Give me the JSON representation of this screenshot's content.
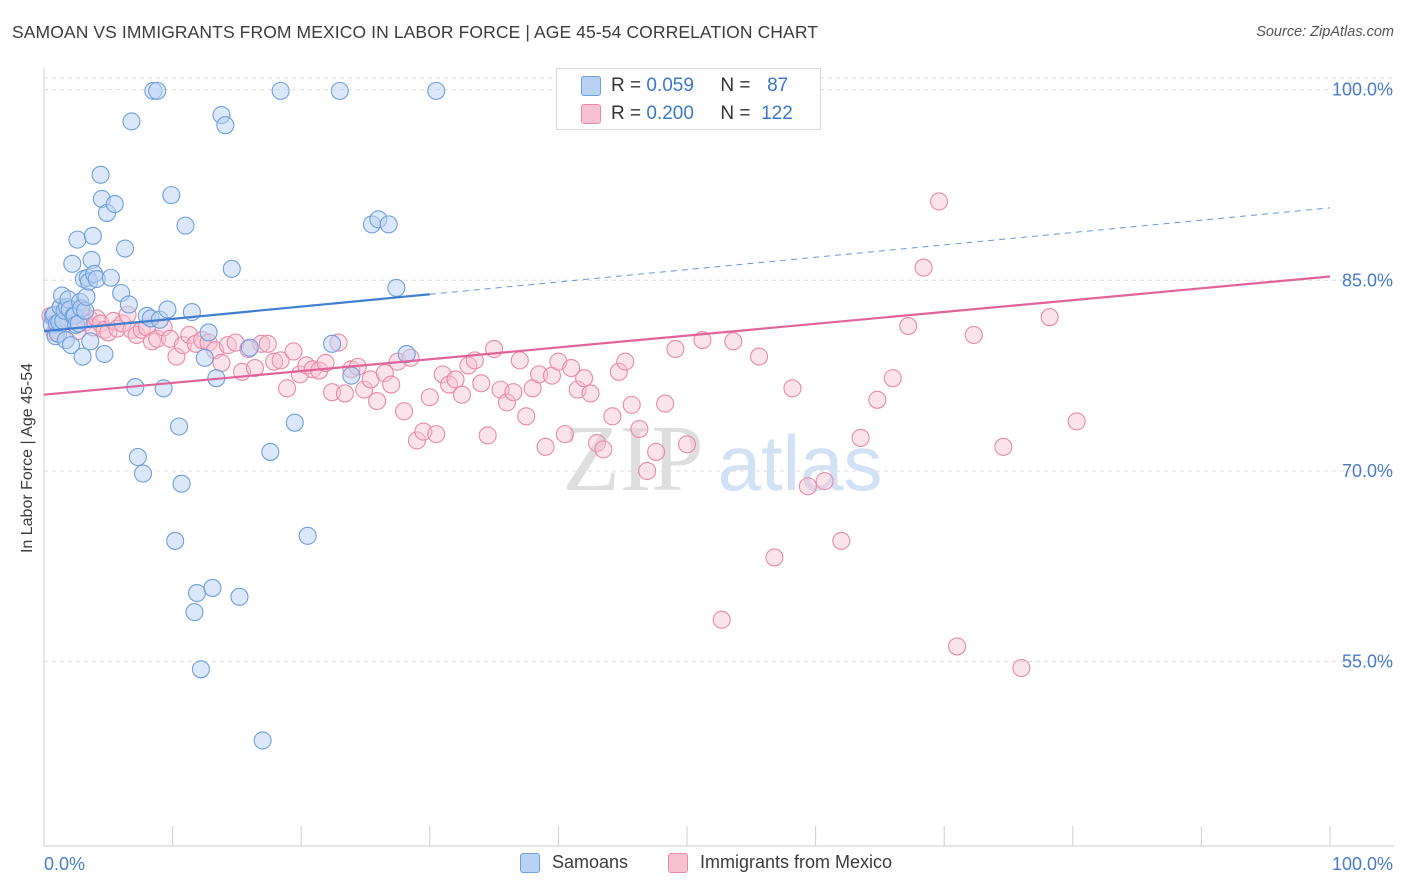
{
  "title": "SAMOAN VS IMMIGRANTS FROM MEXICO IN LABOR FORCE | AGE 45-54 CORRELATION CHART",
  "source": "Source: ZipAtlas.com",
  "watermark": {
    "zip": "ZIP",
    "atlas": "atlas"
  },
  "stats": {
    "samoans": {
      "r_label": "R =",
      "r_value": "0.059",
      "n_label": "N =",
      "n_value": "87"
    },
    "mexico": {
      "r_label": "R =",
      "r_value": "0.200",
      "n_label": "N =",
      "n_value": "122"
    }
  },
  "legend": {
    "samoans": "Samoans",
    "mexico": "Immigrants from Mexico"
  },
  "colors": {
    "blue_fill": "#b9d2f3",
    "blue_stroke": "#6f9fdc",
    "blue_line": "#3f7fd0",
    "pink_fill": "#f7c1d2",
    "pink_stroke": "#e98aa8",
    "pink_line": "#e0649a",
    "grid": "#dcdcdc",
    "axis_text": "#4a7bc8"
  },
  "chart_data": {
    "type": "scatter",
    "title": "SAMOAN VS IMMIGRANTS FROM MEXICO IN LABOR FORCE | AGE 45-54 CORRELATION CHART",
    "xlabel": "",
    "ylabel": "In Labor Force | Age 45-54",
    "xlim": [
      0,
      100
    ],
    "ylim": [
      40.5,
      101.7
    ],
    "x_tick_labels": [
      "0.0%",
      "100.0%"
    ],
    "y_ticks": [
      55,
      70,
      85,
      100
    ],
    "y_tick_labels": [
      "55.0%",
      "70.0%",
      "85.0%",
      "100.0%"
    ],
    "series": [
      {
        "name": "Samoans",
        "R": 0.059,
        "N": 87,
        "trend": {
          "x0": 0,
          "y0": 81.0,
          "x1": 30,
          "y1": 83.9,
          "x_dash_end": 100,
          "y_dash_end": 90.7
        },
        "points": [
          [
            0.6,
            81.5
          ],
          [
            0.7,
            82.2
          ],
          [
            0.8,
            82.3
          ],
          [
            0.9,
            80.6
          ],
          [
            1.0,
            81.6
          ],
          [
            1.1,
            80.8
          ],
          [
            1.2,
            81.7
          ],
          [
            1.3,
            82.9
          ],
          [
            1.4,
            83.8
          ],
          [
            1.5,
            81.8
          ],
          [
            1.6,
            82.6
          ],
          [
            1.7,
            80.3
          ],
          [
            1.8,
            82.9
          ],
          [
            1.9,
            83.5
          ],
          [
            2.0,
            82.7
          ],
          [
            2.1,
            79.9
          ],
          [
            2.2,
            86.3
          ],
          [
            2.3,
            82.2
          ],
          [
            2.4,
            82.2
          ],
          [
            2.5,
            81.5
          ],
          [
            2.6,
            88.2
          ],
          [
            2.7,
            81.6
          ],
          [
            2.8,
            83.3
          ],
          [
            2.9,
            82.8
          ],
          [
            3.0,
            79.0
          ],
          [
            3.1,
            85.1
          ],
          [
            3.2,
            82.6
          ],
          [
            3.3,
            83.7
          ],
          [
            3.4,
            85.2
          ],
          [
            3.5,
            84.9
          ],
          [
            3.6,
            80.2
          ],
          [
            3.7,
            86.6
          ],
          [
            3.8,
            88.5
          ],
          [
            3.9,
            85.5
          ],
          [
            4.1,
            85.1
          ],
          [
            4.4,
            93.3
          ],
          [
            4.5,
            91.4
          ],
          [
            4.7,
            79.2
          ],
          [
            4.9,
            90.3
          ],
          [
            5.2,
            85.2
          ],
          [
            5.5,
            91.0
          ],
          [
            6.0,
            84.0
          ],
          [
            6.3,
            87.5
          ],
          [
            6.6,
            83.1
          ],
          [
            6.8,
            97.5
          ],
          [
            7.1,
            76.6
          ],
          [
            7.3,
            71.1
          ],
          [
            7.7,
            69.8
          ],
          [
            8.0,
            82.2
          ],
          [
            8.3,
            82.0
          ],
          [
            8.5,
            99.9
          ],
          [
            8.8,
            99.9
          ],
          [
            9.0,
            81.9
          ],
          [
            9.3,
            76.5
          ],
          [
            9.6,
            82.7
          ],
          [
            9.9,
            91.7
          ],
          [
            10.2,
            64.5
          ],
          [
            10.5,
            73.5
          ],
          [
            10.7,
            69.0
          ],
          [
            11.0,
            89.3
          ],
          [
            11.5,
            82.5
          ],
          [
            11.7,
            58.9
          ],
          [
            11.9,
            60.4
          ],
          [
            12.2,
            54.4
          ],
          [
            12.5,
            78.9
          ],
          [
            12.8,
            80.9
          ],
          [
            13.1,
            60.8
          ],
          [
            13.4,
            77.3
          ],
          [
            13.8,
            98.0
          ],
          [
            14.1,
            97.2
          ],
          [
            14.6,
            85.9
          ],
          [
            15.2,
            60.1
          ],
          [
            16.0,
            79.7
          ],
          [
            17.0,
            48.8
          ],
          [
            17.6,
            71.5
          ],
          [
            18.4,
            99.9
          ],
          [
            19.5,
            73.8
          ],
          [
            20.5,
            64.9
          ],
          [
            22.4,
            80.0
          ],
          [
            23.0,
            99.9
          ],
          [
            23.9,
            77.5
          ],
          [
            25.5,
            89.4
          ],
          [
            26.0,
            89.8
          ],
          [
            26.8,
            89.4
          ],
          [
            27.4,
            84.4
          ],
          [
            28.2,
            79.2
          ],
          [
            30.5,
            99.9
          ]
        ]
      },
      {
        "name": "Immigrants from Mexico",
        "R": 0.2,
        "N": 122,
        "trend": {
          "x0": 0,
          "y0": 76.0,
          "x1": 100,
          "y1": 85.3
        },
        "points": [
          [
            0.5,
            82.2
          ],
          [
            0.8,
            80.9
          ],
          [
            1.0,
            81.1
          ],
          [
            1.3,
            82.9
          ],
          [
            1.6,
            81.8
          ],
          [
            2.0,
            82.4
          ],
          [
            2.3,
            82.6
          ],
          [
            2.6,
            81.0
          ],
          [
            2.9,
            82.7
          ],
          [
            3.2,
            81.7
          ],
          [
            3.5,
            82.0
          ],
          [
            3.8,
            81.3
          ],
          [
            4.1,
            82.0
          ],
          [
            4.4,
            81.6
          ],
          [
            4.7,
            81.1
          ],
          [
            5.0,
            80.9
          ],
          [
            5.4,
            81.8
          ],
          [
            5.7,
            81.2
          ],
          [
            6.1,
            81.6
          ],
          [
            6.5,
            82.3
          ],
          [
            6.8,
            81.1
          ],
          [
            7.2,
            80.7
          ],
          [
            7.6,
            81.1
          ],
          [
            8.0,
            81.3
          ],
          [
            8.4,
            80.2
          ],
          [
            8.8,
            80.4
          ],
          [
            9.3,
            81.3
          ],
          [
            9.8,
            80.4
          ],
          [
            10.3,
            79.0
          ],
          [
            10.8,
            79.9
          ],
          [
            11.3,
            80.7
          ],
          [
            11.8,
            80.0
          ],
          [
            12.3,
            80.3
          ],
          [
            12.8,
            80.1
          ],
          [
            13.3,
            79.5
          ],
          [
            13.8,
            78.5
          ],
          [
            14.3,
            79.9
          ],
          [
            14.9,
            80.1
          ],
          [
            15.4,
            77.8
          ],
          [
            15.9,
            79.6
          ],
          [
            16.4,
            78.1
          ],
          [
            16.9,
            80.0
          ],
          [
            17.4,
            80.0
          ],
          [
            17.9,
            78.6
          ],
          [
            18.4,
            78.7
          ],
          [
            18.9,
            76.5
          ],
          [
            19.4,
            79.4
          ],
          [
            19.9,
            77.6
          ],
          [
            20.4,
            78.3
          ],
          [
            20.9,
            78.0
          ],
          [
            21.4,
            77.9
          ],
          [
            21.9,
            78.5
          ],
          [
            22.4,
            76.2
          ],
          [
            22.9,
            80.1
          ],
          [
            23.4,
            76.1
          ],
          [
            23.9,
            78.0
          ],
          [
            24.4,
            78.2
          ],
          [
            24.9,
            76.4
          ],
          [
            25.4,
            77.2
          ],
          [
            25.9,
            75.5
          ],
          [
            26.5,
            77.7
          ],
          [
            27.0,
            76.8
          ],
          [
            27.5,
            78.6
          ],
          [
            28.0,
            74.7
          ],
          [
            28.5,
            78.9
          ],
          [
            29.0,
            72.4
          ],
          [
            29.5,
            73.1
          ],
          [
            30.0,
            75.8
          ],
          [
            30.5,
            72.9
          ],
          [
            31.0,
            77.6
          ],
          [
            31.5,
            76.8
          ],
          [
            32.0,
            77.2
          ],
          [
            32.5,
            76.0
          ],
          [
            33.0,
            78.3
          ],
          [
            33.5,
            78.7
          ],
          [
            34.0,
            76.9
          ],
          [
            34.5,
            72.8
          ],
          [
            35.0,
            79.6
          ],
          [
            35.5,
            76.4
          ],
          [
            36.0,
            75.4
          ],
          [
            36.5,
            76.2
          ],
          [
            37.0,
            78.7
          ],
          [
            37.5,
            74.3
          ],
          [
            38.0,
            76.5
          ],
          [
            38.5,
            77.6
          ],
          [
            39.0,
            71.9
          ],
          [
            39.5,
            77.5
          ],
          [
            40.0,
            78.6
          ],
          [
            40.5,
            72.9
          ],
          [
            41.0,
            78.1
          ],
          [
            41.5,
            76.4
          ],
          [
            42.0,
            77.3
          ],
          [
            42.5,
            76.1
          ],
          [
            43.0,
            72.2
          ],
          [
            43.5,
            71.7
          ],
          [
            44.2,
            74.3
          ],
          [
            44.7,
            77.8
          ],
          [
            45.2,
            78.6
          ],
          [
            45.7,
            75.2
          ],
          [
            46.3,
            73.3
          ],
          [
            46.9,
            70.0
          ],
          [
            47.6,
            71.5
          ],
          [
            48.3,
            75.3
          ],
          [
            49.1,
            79.6
          ],
          [
            50.0,
            72.1
          ],
          [
            51.2,
            80.3
          ],
          [
            52.7,
            58.3
          ],
          [
            53.6,
            80.2
          ],
          [
            55.6,
            79.0
          ],
          [
            56.8,
            63.2
          ],
          [
            58.2,
            76.5
          ],
          [
            59.4,
            68.8
          ],
          [
            60.7,
            69.2
          ],
          [
            62.0,
            64.5
          ],
          [
            63.5,
            72.6
          ],
          [
            64.8,
            75.6
          ],
          [
            66.0,
            77.3
          ],
          [
            67.2,
            81.4
          ],
          [
            68.4,
            86.0
          ],
          [
            69.6,
            91.2
          ],
          [
            71.0,
            56.2
          ],
          [
            72.3,
            80.7
          ],
          [
            74.6,
            71.9
          ],
          [
            76.0,
            54.5
          ],
          [
            78.2,
            82.1
          ],
          [
            80.3,
            73.9
          ]
        ]
      }
    ]
  }
}
